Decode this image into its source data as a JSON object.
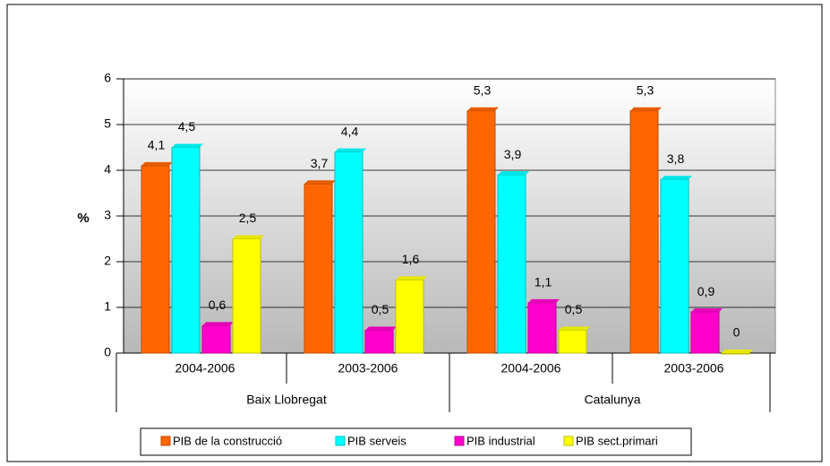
{
  "chart_data": {
    "type": "bar",
    "y_label": "%",
    "categories": [
      "2004-2006",
      "2003-2006",
      "2004-2006",
      "2003-2006"
    ],
    "group_labels": [
      "Baix Llobregat",
      "Catalunya"
    ],
    "series": [
      {
        "name": "PIB de la construcció",
        "color": "#ff6600",
        "values": [
          4.1,
          3.7,
          5.3,
          5.3
        ],
        "value_labels": [
          "4,1",
          "3,7",
          "5,3",
          "5,3"
        ]
      },
      {
        "name": "PIB serveis",
        "color": "#00ffff",
        "values": [
          4.5,
          4.4,
          3.9,
          3.8
        ],
        "value_labels": [
          "4,5",
          "4,4",
          "3,9",
          "3,8"
        ]
      },
      {
        "name": "PIB industrial",
        "color": "#ff00cc",
        "values": [
          0.6,
          0.5,
          1.1,
          0.9
        ],
        "value_labels": [
          "0,6",
          "0,5",
          "1,1",
          "0,9"
        ]
      },
      {
        "name": "PIB sect.primari",
        "color": "#ffff00",
        "values": [
          2.5,
          1.6,
          0.5,
          0
        ],
        "value_labels": [
          "2,5",
          "1,6",
          "0,5",
          "0"
        ]
      }
    ],
    "ylim": [
      0,
      6
    ],
    "yticks": [
      0,
      1,
      2,
      3,
      4,
      5,
      6
    ],
    "grid": true
  }
}
